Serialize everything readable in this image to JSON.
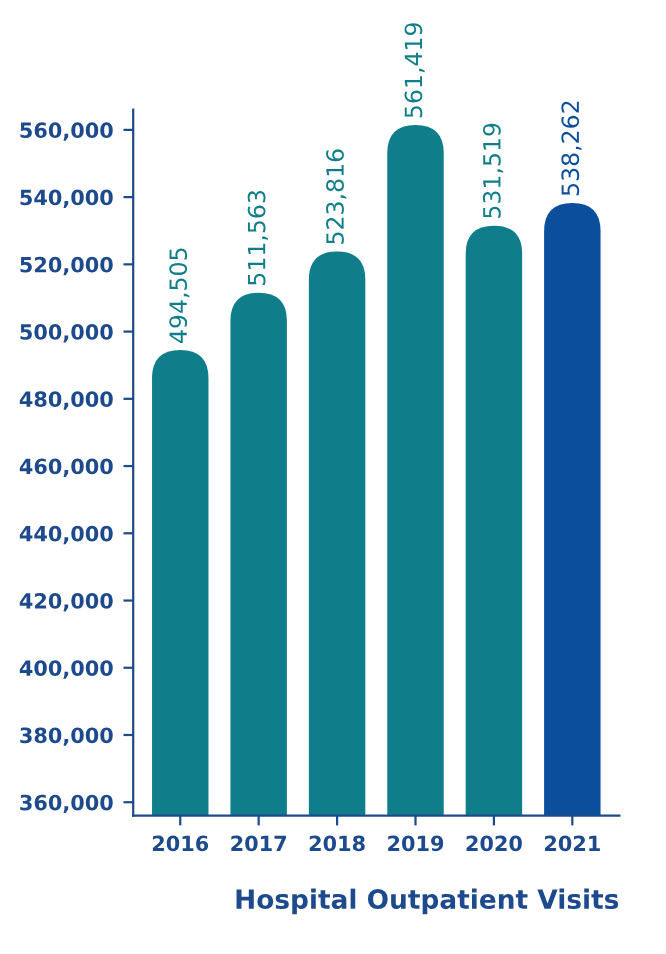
{
  "chart_data": {
    "type": "bar",
    "xlabel": "Hospital Outpatient Visits",
    "categories": [
      "2016",
      "2017",
      "2018",
      "2019",
      "2020",
      "2021"
    ],
    "values": [
      494505,
      511563,
      523816,
      561419,
      531519,
      538262
    ],
    "colors": [
      "#107e8a",
      "#107e8a",
      "#107e8a",
      "#107e8a",
      "#107e8a",
      "#0b4f9c"
    ],
    "value_labels": [
      "494,505",
      "511,563",
      "523,816",
      "561,419",
      "531,519",
      "538,262"
    ],
    "ylim": [
      356000,
      566000
    ],
    "yticks": [
      {
        "value": 360000,
        "label": "360,000"
      },
      {
        "value": 380000,
        "label": "380,000"
      },
      {
        "value": 400000,
        "label": "400,000"
      },
      {
        "value": 420000,
        "label": "420,000"
      },
      {
        "value": 440000,
        "label": "440,000"
      },
      {
        "value": 460000,
        "label": "460,000"
      },
      {
        "value": 480000,
        "label": "480,000"
      },
      {
        "value": 500000,
        "label": "500,000"
      },
      {
        "value": 520000,
        "label": "520,000"
      },
      {
        "value": 540000,
        "label": "540,000"
      },
      {
        "value": 560000,
        "label": "560,000"
      }
    ],
    "grid": false
  }
}
